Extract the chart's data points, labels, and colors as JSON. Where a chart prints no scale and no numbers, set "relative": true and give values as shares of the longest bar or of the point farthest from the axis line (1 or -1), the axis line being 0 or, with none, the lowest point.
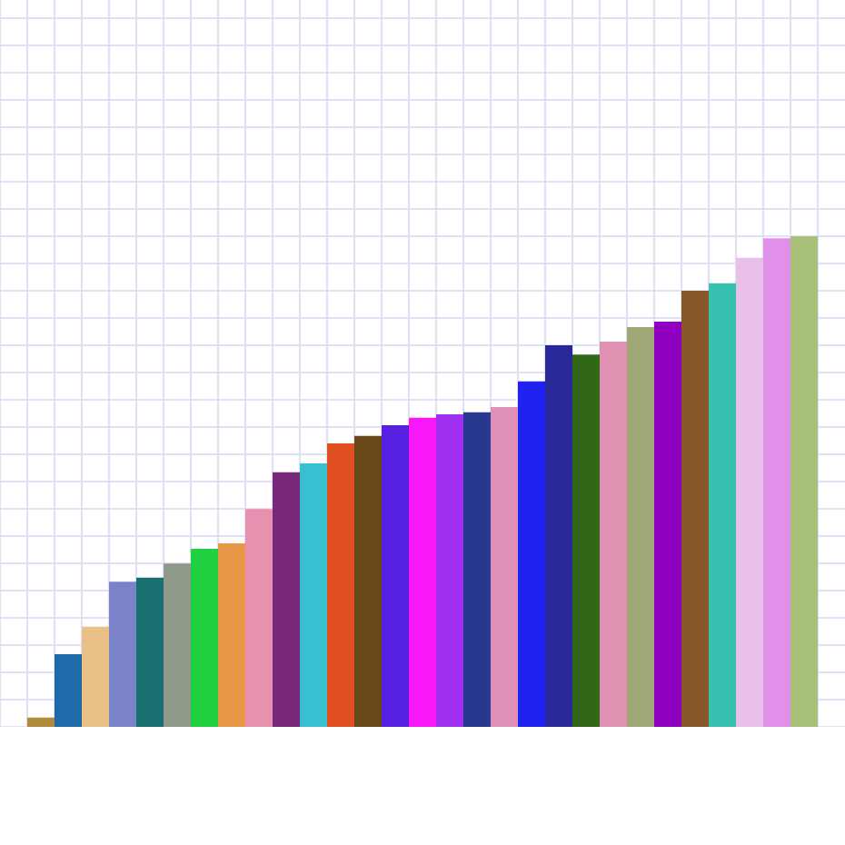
{
  "chart_data": {
    "type": "bar",
    "relative": true,
    "grid": true,
    "tick_labels": false,
    "categories": [
      null,
      null,
      null,
      null,
      null,
      null,
      null,
      null,
      null,
      null,
      null,
      null,
      null,
      null,
      null,
      null,
      null,
      null,
      null,
      null,
      null,
      null,
      null,
      null,
      null,
      null,
      null,
      null,
      null
    ],
    "values": [
      0.019,
      0.148,
      0.204,
      0.296,
      0.304,
      0.333,
      0.363,
      0.374,
      0.444,
      0.519,
      0.537,
      0.578,
      0.593,
      0.615,
      0.63,
      0.637,
      0.641,
      0.652,
      0.704,
      0.778,
      0.759,
      0.785,
      0.815,
      0.826,
      0.889,
      0.904,
      0.956,
      0.996,
      1
    ],
    "colors": [
      "#b08a3a",
      "#1f6aa8",
      "#e8c088",
      "#7a82c8",
      "#1a7070",
      "#909a8a",
      "#20d040",
      "#e89848",
      "#e890b0",
      "#782878",
      "#38c0d0",
      "#e05020",
      "#684818",
      "#5820e0",
      "#f818f8",
      "#a030f0",
      "#283890",
      "#e090b8",
      "#2020f0",
      "#282898",
      "#306818",
      "#e090b0",
      "#a0a878",
      "#9000c0",
      "#885828",
      "#38c0b0",
      "#e8c0e8",
      "#e090e8",
      "#a8c078"
    ]
  }
}
